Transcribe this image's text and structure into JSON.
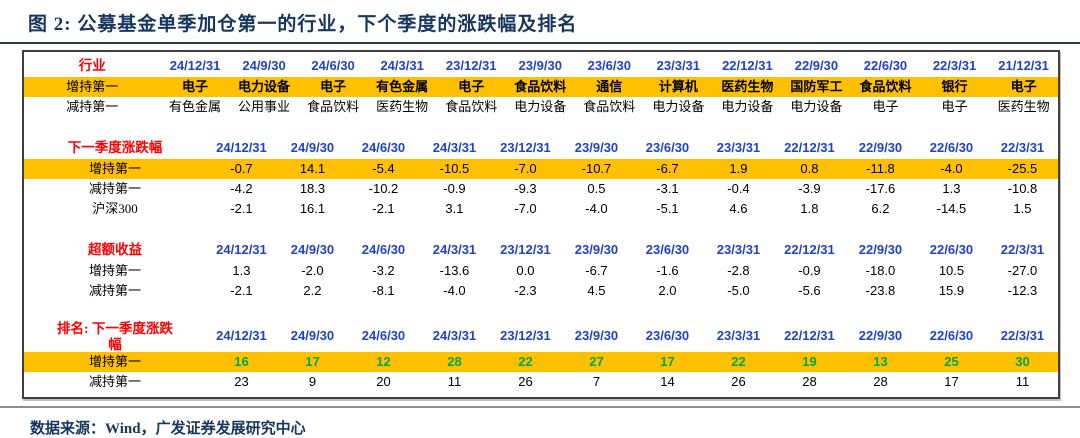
{
  "title": "图 2: 公募基金单季加仓第一的行业，下个季度的涨跌幅及排名",
  "footer": {
    "source": "数据来源：Wind，广发证券发展研究中心"
  },
  "colors": {
    "accent_yellow": "#FFC000",
    "header_blue": "#2143C4",
    "label_red": "#FF0000",
    "rank_green": "#00A651",
    "title_navy": "#17365D"
  },
  "table": {
    "sections": [
      {
        "id": "industry",
        "label": "行业",
        "dates": [
          "24/12/31",
          "24/9/30",
          "24/6/30",
          "24/3/31",
          "23/12/31",
          "23/9/30",
          "23/6/30",
          "23/3/31",
          "22/12/31",
          "22/9/30",
          "22/6/30",
          "22/3/31",
          "21/12/31"
        ],
        "rows": [
          {
            "label": "增持第一",
            "highlight": true,
            "cn": true,
            "emphasis": true,
            "values": [
              "电子",
              "电力设备",
              "电子",
              "有色金属",
              "电子",
              "食品饮料",
              "通信",
              "计算机",
              "医药生物",
              "国防军工",
              "食品饮料",
              "银行",
              "电子"
            ]
          },
          {
            "label": "减持第一",
            "cn": true,
            "values": [
              "有色金属",
              "公用事业",
              "食品饮料",
              "医药生物",
              "食品饮料",
              "电力设备",
              "食品饮料",
              "电力设备",
              "电力设备",
              "电力设备",
              "电子",
              "电子",
              "医药生物"
            ]
          }
        ]
      },
      {
        "id": "next-quarter-change",
        "label": "下一季度涨跌幅",
        "dates": [
          "24/12/31",
          "24/9/30",
          "24/6/30",
          "24/3/31",
          "23/12/31",
          "23/9/30",
          "23/6/30",
          "23/3/31",
          "22/12/31",
          "22/9/30",
          "22/6/30",
          "22/3/31"
        ],
        "rows": [
          {
            "label": "增持第一",
            "highlight": true,
            "values": [
              "-0.7",
              "14.1",
              "-5.4",
              "-10.5",
              "-7.0",
              "-10.7",
              "-6.7",
              "1.9",
              "0.8",
              "-11.8",
              "-4.0",
              "-25.5"
            ]
          },
          {
            "label": "减持第一",
            "values": [
              "-4.2",
              "18.3",
              "-10.2",
              "-0.9",
              "-9.3",
              "0.5",
              "-3.1",
              "-0.4",
              "-3.9",
              "-17.6",
              "1.3",
              "-10.8"
            ]
          },
          {
            "label": "沪深300",
            "values": [
              "-2.1",
              "16.1",
              "-2.1",
              "3.1",
              "-7.0",
              "-4.0",
              "-5.1",
              "4.6",
              "1.8",
              "6.2",
              "-14.5",
              "1.5"
            ]
          }
        ]
      },
      {
        "id": "excess-return",
        "label": "超额收益",
        "dates": [
          "24/12/31",
          "24/9/30",
          "24/6/30",
          "24/3/31",
          "23/12/31",
          "23/9/30",
          "23/6/30",
          "23/3/31",
          "22/12/31",
          "22/9/30",
          "22/6/30",
          "22/3/31"
        ],
        "rows": [
          {
            "label": "增持第一",
            "values": [
              "1.3",
              "-2.0",
              "-3.2",
              "-13.6",
              "0.0",
              "-6.7",
              "-1.6",
              "-2.8",
              "-0.9",
              "-18.0",
              "10.5",
              "-27.0"
            ]
          },
          {
            "label": "减持第一",
            "values": [
              "-2.1",
              "2.2",
              "-8.1",
              "-4.0",
              "-2.3",
              "4.5",
              "2.0",
              "-5.0",
              "-5.6",
              "-23.8",
              "15.9",
              "-12.3"
            ]
          }
        ]
      },
      {
        "id": "rank-next-quarter",
        "label": "排名: 下一季度涨跌幅",
        "wrap_label": true,
        "dates": [
          "24/12/31",
          "24/9/30",
          "24/6/30",
          "24/3/31",
          "23/12/31",
          "23/9/30",
          "23/6/30",
          "23/3/31",
          "22/12/31",
          "22/9/30",
          "22/6/30",
          "22/3/31"
        ],
        "rows": [
          {
            "label": "增持第一",
            "highlight": true,
            "green": true,
            "values": [
              "16",
              "17",
              "12",
              "28",
              "22",
              "27",
              "17",
              "22",
              "19",
              "13",
              "25",
              "30"
            ]
          },
          {
            "label": "减持第一",
            "values": [
              "23",
              "9",
              "20",
              "11",
              "26",
              "7",
              "14",
              "26",
              "28",
              "28",
              "17",
              "11"
            ]
          }
        ]
      }
    ]
  }
}
